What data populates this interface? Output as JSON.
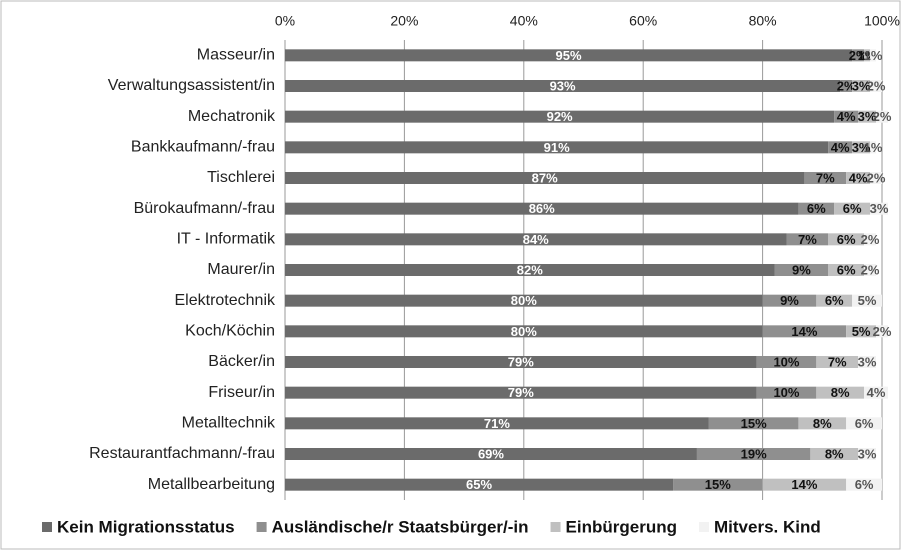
{
  "chart_data": {
    "type": "stacked-bar-horizontal",
    "categories": [
      "Masseur/in",
      "Verwaltungsassistent/in",
      "Mechatronik",
      "Bankkaufmann/-frau",
      "Tischlerei",
      "Bürokaufmann/-frau",
      "IT - Informatik",
      "Maurer/in",
      "Elektrotechnik",
      "Koch/Köchin",
      "Bäcker/in",
      "Friseur/in",
      "Metalltechnik",
      "Restaurantfachmann/-frau",
      "Metallbearbeitung"
    ],
    "series": [
      {
        "name": "Kein Migrationsstatus",
        "color": "#6b6b6b",
        "values": [
          95,
          93,
          92,
          91,
          87,
          86,
          84,
          82,
          80,
          80,
          79,
          79,
          71,
          69,
          65
        ],
        "value_labels": [
          "95%",
          "93%",
          "92%",
          "91%",
          "87%",
          "86%",
          "84%",
          "82%",
          "80%",
          "80%",
          "79%",
          "79%",
          "71%",
          "69%",
          "65%"
        ]
      },
      {
        "name": "Ausländische/r Staatsbürger/-in",
        "color": "#8f8f8f",
        "values": [
          2,
          2,
          4,
          4,
          7,
          6,
          7,
          9,
          9,
          14,
          10,
          10,
          15,
          19,
          15
        ],
        "value_labels": [
          "2%",
          "2%",
          "4%",
          "4%",
          "7%",
          "6%",
          "7%",
          "9%",
          "9%",
          "14%",
          "10%",
          "10%",
          "15%",
          "19%",
          "15%"
        ]
      },
      {
        "name": "Einbürgerung",
        "color": "#c0c0c0",
        "values": [
          1,
          3,
          3,
          3,
          4,
          6,
          6,
          6,
          6,
          5,
          7,
          8,
          8,
          8,
          14
        ],
        "value_labels": [
          "1%",
          "3%",
          "3%",
          "3%",
          "4%",
          "6%",
          "6%",
          "6%",
          "6%",
          "5%",
          "7%",
          "8%",
          "8%",
          "8%",
          "14%"
        ]
      },
      {
        "name": "Mitvers. Kind",
        "color": "#f2f2f2",
        "values": [
          1,
          2,
          2,
          1,
          2,
          3,
          2,
          2,
          5,
          2,
          3,
          4,
          6,
          3,
          6
        ],
        "value_labels": [
          "1%",
          "2%",
          "2%",
          "1%",
          "2%",
          "3%",
          "2%",
          "2%",
          "5%",
          "2%",
          "3%",
          "4%",
          "6%",
          "3%",
          "6%"
        ]
      }
    ],
    "xlim": [
      0,
      100
    ],
    "xticks": [
      {
        "value": 0,
        "label": "0%"
      },
      {
        "value": 20,
        "label": "20%"
      },
      {
        "value": 40,
        "label": "40%"
      },
      {
        "value": 60,
        "label": "60%"
      },
      {
        "value": 80,
        "label": "80%"
      },
      {
        "value": 100,
        "label": "100%"
      }
    ],
    "grid": true,
    "legend": "bottom"
  }
}
